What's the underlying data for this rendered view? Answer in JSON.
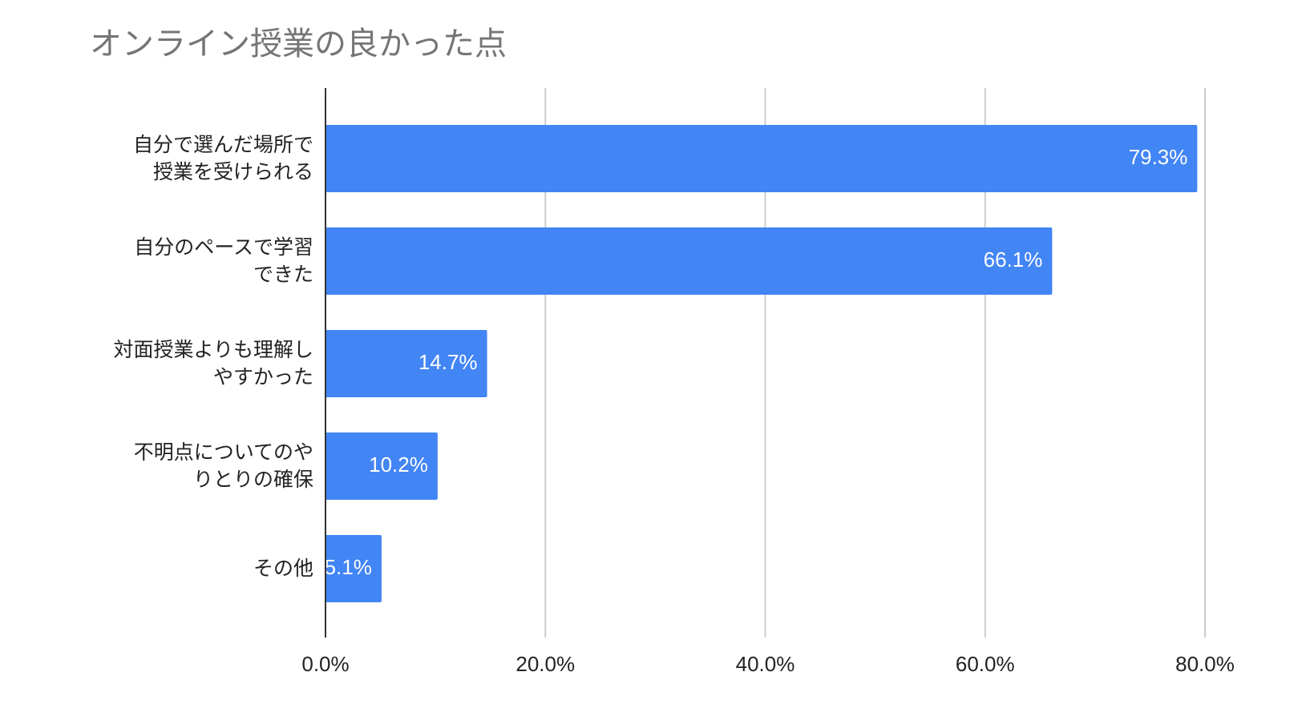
{
  "chart_data": {
    "type": "bar",
    "orientation": "horizontal",
    "title": "オンライン授業の良かった点",
    "categories": [
      "自分で選んだ場所で\n授業を受けられる",
      "自分のペースで学習\nできた",
      "対面授業よりも理解し\nやすかった",
      "不明点についてのや\nりとりの確保",
      "その他"
    ],
    "values": [
      79.3,
      66.1,
      14.7,
      10.2,
      5.1
    ],
    "value_labels": [
      "79.3%",
      "66.1%",
      "14.7%",
      "10.2%",
      "5.1%"
    ],
    "color": "#4285f4",
    "xlim": [
      0,
      80
    ],
    "xticks": [
      {
        "value": 0,
        "label": "0.0%"
      },
      {
        "value": 20,
        "label": "20.0%"
      },
      {
        "value": 40,
        "label": "40.0%"
      },
      {
        "value": 60,
        "label": "60.0%"
      },
      {
        "value": 80,
        "label": "80.0%"
      }
    ],
    "grid": true
  }
}
